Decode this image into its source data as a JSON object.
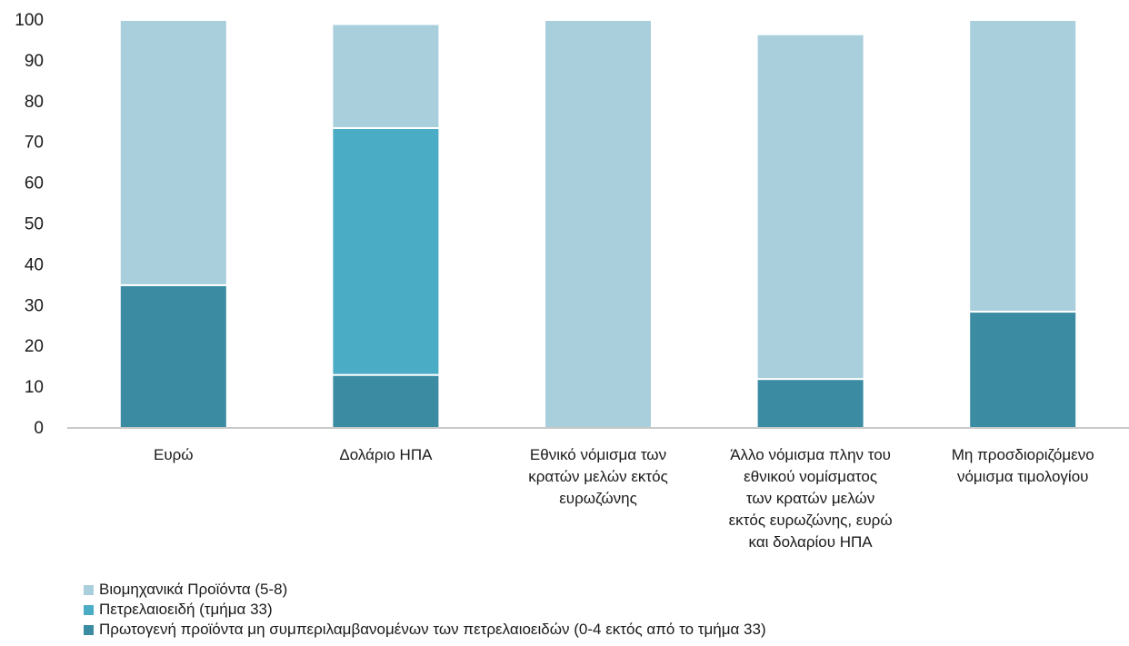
{
  "chart_data": {
    "type": "bar",
    "stacked": true,
    "categories": [
      [
        "Ευρώ"
      ],
      [
        "Δολάριο ΗΠΑ"
      ],
      [
        "Εθνικό νόμισμα των",
        "κρατών μελών εκτός",
        "ευρωζώνης"
      ],
      [
        "Άλλο νόμισμα πλην του",
        "εθνικού νομίσματος",
        "των κρατών μελών",
        "εκτός ευρωζώνης, ευρώ",
        "και δολαρίου ΗΠΑ"
      ],
      [
        "Μη προσδιοριζόμενο",
        "νόμισμα τιμολογίου"
      ]
    ],
    "series": [
      {
        "name": "Πρωτογενή προϊόντα μη συμπεριλαμβανομένων των πετρελαιοειδών (0-4 εκτός από το τμήμα 33)",
        "color": "#3b8ba3",
        "values": [
          35,
          13,
          0,
          12,
          28.5
        ]
      },
      {
        "name": "Πετρελαιοειδή (τμήμα 33)",
        "color": "#4bacc6",
        "values": [
          0,
          60.5,
          0,
          0,
          0
        ]
      },
      {
        "name": "Βιομηχανικά Προϊόντα  (5-8)",
        "color": "#a9cfdd",
        "values": [
          65,
          25.5,
          100,
          84.5,
          71.5
        ]
      }
    ],
    "legend_order": [
      2,
      1,
      0
    ],
    "legend_position": "bottom-left",
    "ylim": [
      0,
      100
    ],
    "yticks": [
      "0",
      "10",
      "20",
      "30",
      "40",
      "50",
      "60",
      "70",
      "80",
      "90",
      "100"
    ],
    "grid": false,
    "title": "",
    "xlabel": "",
    "ylabel": ""
  }
}
